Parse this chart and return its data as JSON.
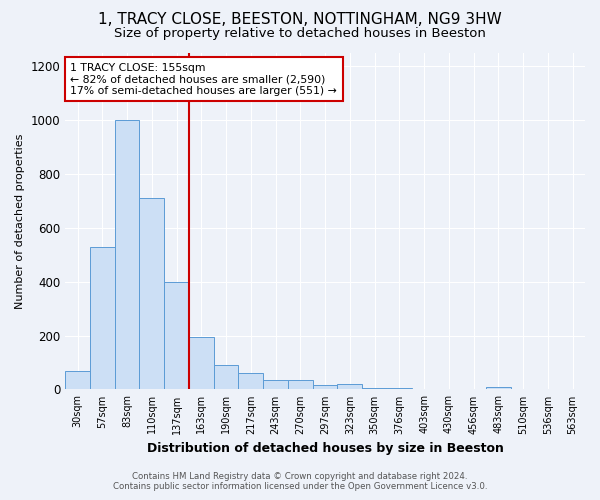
{
  "title": "1, TRACY CLOSE, BEESTON, NOTTINGHAM, NG9 3HW",
  "subtitle": "Size of property relative to detached houses in Beeston",
  "xlabel": "Distribution of detached houses by size in Beeston",
  "ylabel": "Number of detached properties",
  "footer_line1": "Contains HM Land Registry data © Crown copyright and database right 2024.",
  "footer_line2": "Contains public sector information licensed under the Open Government Licence v3.0.",
  "bin_labels": [
    "30sqm",
    "57sqm",
    "83sqm",
    "110sqm",
    "137sqm",
    "163sqm",
    "190sqm",
    "217sqm",
    "243sqm",
    "270sqm",
    "297sqm",
    "323sqm",
    "350sqm",
    "376sqm",
    "403sqm",
    "430sqm",
    "456sqm",
    "483sqm",
    "510sqm",
    "536sqm",
    "563sqm"
  ],
  "bar_heights": [
    70,
    530,
    1000,
    710,
    400,
    195,
    90,
    60,
    35,
    35,
    15,
    20,
    5,
    5,
    3,
    3,
    3,
    10,
    3,
    3,
    0
  ],
  "bar_color": "#ccdff5",
  "bar_edge_color": "#5b9bd5",
  "red_line_x": 4.5,
  "red_line_color": "#cc0000",
  "annotation_line1": "1 TRACY CLOSE: 155sqm",
  "annotation_line2": "← 82% of detached houses are smaller (2,590)",
  "annotation_line3": "17% of semi-detached houses are larger (551) →",
  "annotation_box_color": "white",
  "annotation_box_edge_color": "#cc0000",
  "ylim": [
    0,
    1250
  ],
  "yticks": [
    0,
    200,
    400,
    600,
    800,
    1000,
    1200
  ],
  "title_fontsize": 11,
  "subtitle_fontsize": 9.5,
  "background_color": "#eef2f9",
  "plot_background": "#eef2f9",
  "xlabel_fontsize": 9,
  "ylabel_fontsize": 8
}
